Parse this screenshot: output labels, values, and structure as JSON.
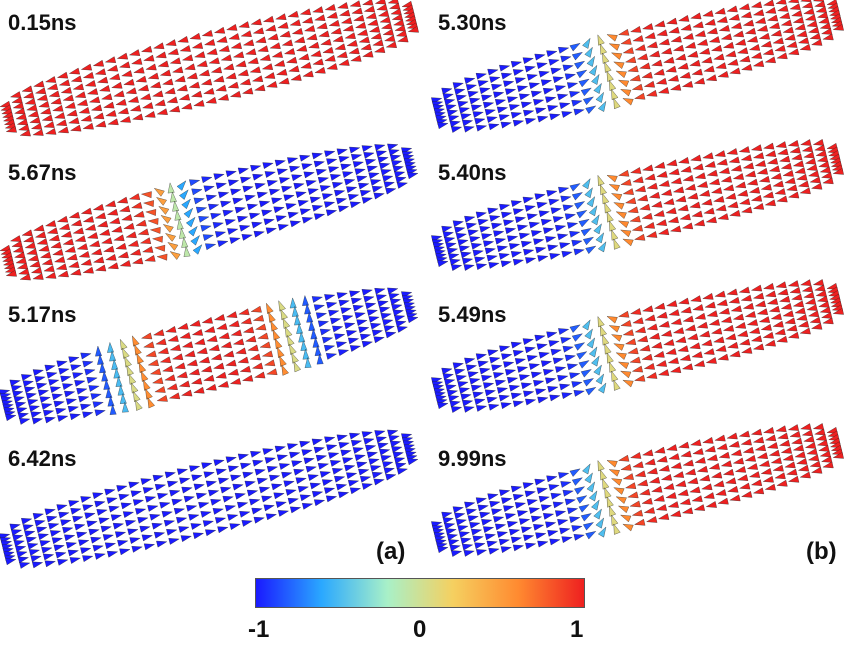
{
  "panels": {
    "a": {
      "letter": "(a)",
      "snapshots": [
        {
          "time": "0.15ns",
          "state": "uniform",
          "mz": 1
        },
        {
          "time": "5.67ns",
          "state": "one-wall",
          "left": 1,
          "right": -1
        },
        {
          "time": "5.17ns",
          "state": "two-walls",
          "left": -1,
          "mid": 1,
          "right": -1
        },
        {
          "time": "6.42ns",
          "state": "uniform",
          "mz": -1
        }
      ]
    },
    "b": {
      "letter": "(b)",
      "snapshots": [
        {
          "time": "5.30ns",
          "state": "vortex-like",
          "left": -1,
          "right": 1
        },
        {
          "time": "5.40ns",
          "state": "one-wall",
          "left": -1,
          "right": 1
        },
        {
          "time": "5.49ns",
          "state": "one-wall",
          "left": -1,
          "right": 1
        },
        {
          "time": "9.99ns",
          "state": "one-wall",
          "left": -1,
          "right": 1
        }
      ]
    }
  },
  "colorbar": {
    "ticks": [
      "-1",
      "0",
      "1"
    ],
    "colors": [
      "#1a1aff",
      "#2aa8ff",
      "#a8f0c8",
      "#f5d060",
      "#ff8a30",
      "#ee2020"
    ]
  }
}
